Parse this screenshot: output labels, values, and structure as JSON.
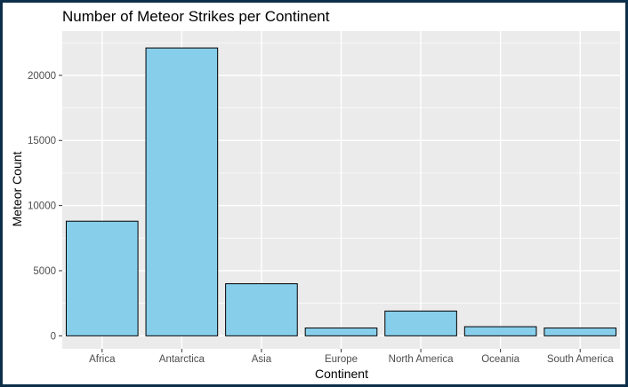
{
  "chart_data": {
    "type": "bar",
    "title": "Number of Meteor Strikes per Continent",
    "xlabel": "Continent",
    "ylabel": "Meteor Count",
    "categories": [
      "Africa",
      "Antarctica",
      "Asia",
      "Europe",
      "North America",
      "Oceania",
      "South America"
    ],
    "values": [
      8800,
      22100,
      4000,
      600,
      1900,
      700,
      600
    ],
    "ylim": [
      -1000,
      23400
    ],
    "yticks": [
      0,
      5000,
      10000,
      15000,
      20000
    ],
    "ytick_labels": [
      "0",
      "5000",
      "10000",
      "15000",
      "20000"
    ],
    "grid": true,
    "legend": "none",
    "colors": {
      "bar_fill": "#87CEEB",
      "bar_stroke": "#000000",
      "panel_bg": "#EBEBEB",
      "grid_major": "#FFFFFF",
      "frame_border": "#0D2F4A"
    }
  }
}
